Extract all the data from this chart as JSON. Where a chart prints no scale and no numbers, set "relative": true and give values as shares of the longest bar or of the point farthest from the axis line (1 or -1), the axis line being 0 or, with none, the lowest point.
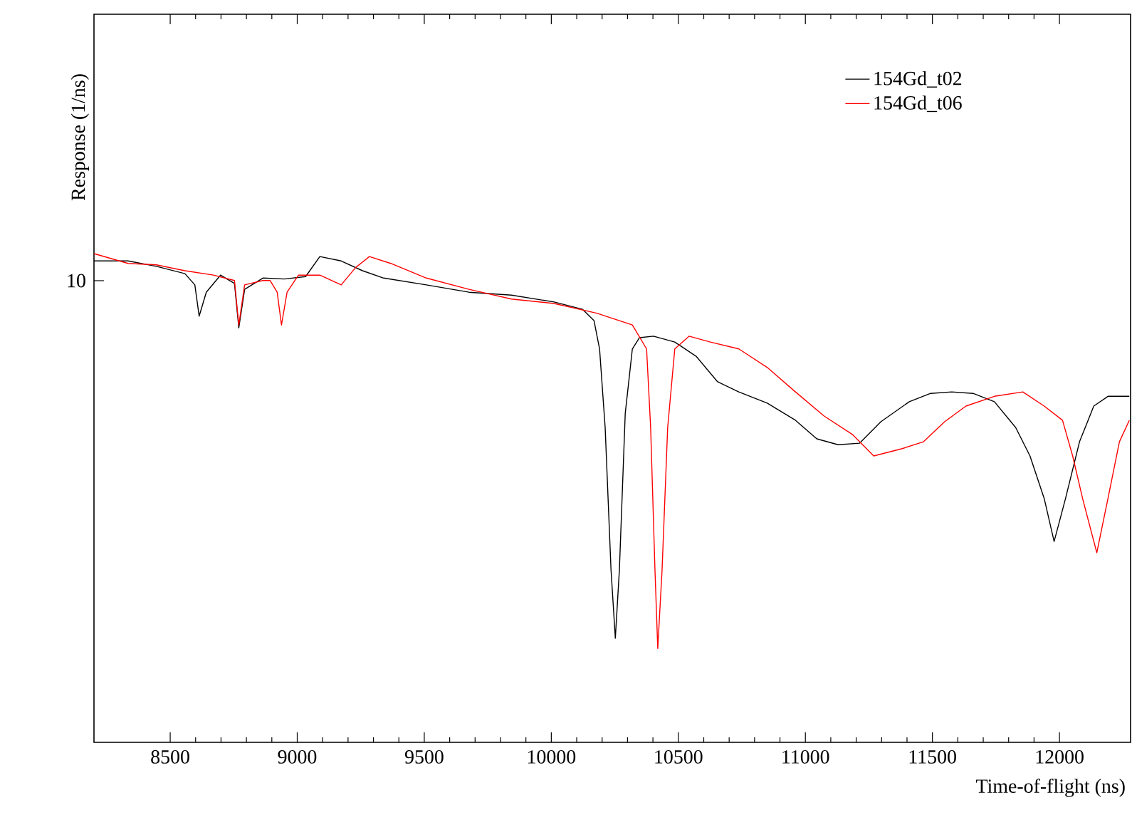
{
  "chart_data": {
    "type": "line",
    "xlabel": "Time-of-flight (ns)",
    "ylabel": "Response (1/ns)",
    "relative": true,
    "legend": "top right",
    "marker": "none",
    "line_style": "solid",
    "xlim": [
      8200,
      12280
    ],
    "xticks": [
      8500,
      9000,
      9500,
      10000,
      10500,
      11000,
      11500,
      12000
    ],
    "annotations": [
      "10"
    ],
    "series": [
      {
        "name": "154Gd_t02",
        "color": "#000000",
        "x": [
          8200,
          8334,
          8446,
          8558,
          8597,
          8614,
          8642,
          8698,
          8753,
          8770,
          8793,
          8865,
          8949,
          9033,
          9089,
          9173,
          9257,
          9340,
          9508,
          9676,
          9843,
          10011,
          10123,
          10168,
          10190,
          10212,
          10235,
          10252,
          10268,
          10291,
          10319,
          10347,
          10402,
          10486,
          10570,
          10654,
          10738,
          10850,
          10961,
          11045,
          11129,
          11213,
          11297,
          11409,
          11493,
          11576,
          11660,
          11744,
          11828,
          11884,
          11940,
          11979,
          12024,
          12079,
          12135,
          12191,
          12275
        ],
        "values": [
          0.985,
          0.985,
          0.974,
          0.959,
          0.936,
          0.872,
          0.921,
          0.956,
          0.939,
          0.848,
          0.927,
          0.95,
          0.948,
          0.953,
          0.994,
          0.985,
          0.965,
          0.95,
          0.936,
          0.921,
          0.915,
          0.901,
          0.886,
          0.863,
          0.805,
          0.644,
          0.353,
          0.213,
          0.353,
          0.673,
          0.805,
          0.828,
          0.831,
          0.819,
          0.79,
          0.738,
          0.717,
          0.694,
          0.659,
          0.621,
          0.609,
          0.612,
          0.656,
          0.697,
          0.714,
          0.717,
          0.714,
          0.697,
          0.644,
          0.586,
          0.499,
          0.411,
          0.499,
          0.615,
          0.688,
          0.708,
          0.708
        ]
      },
      {
        "name": "154Gd_t06",
        "color": "#ff0000",
        "x": [
          8200,
          8334,
          8446,
          8558,
          8670,
          8753,
          8770,
          8793,
          8865,
          8893,
          8921,
          8938,
          8960,
          9005,
          9089,
          9173,
          9229,
          9284,
          9368,
          9508,
          9676,
          9843,
          10011,
          10179,
          10319,
          10375,
          10391,
          10408,
          10419,
          10436,
          10458,
          10486,
          10542,
          10626,
          10738,
          10850,
          10961,
          11073,
          11185,
          11269,
          11381,
          11465,
          11548,
          11632,
          11744,
          11856,
          11940,
          12012,
          12052,
          12091,
          12147,
          12191,
          12236,
          12275
        ],
        "values": [
          1,
          0.98,
          0.977,
          0.965,
          0.956,
          0.945,
          0.854,
          0.936,
          0.945,
          0.945,
          0.921,
          0.854,
          0.921,
          0.956,
          0.956,
          0.936,
          0.971,
          0.994,
          0.98,
          0.95,
          0.927,
          0.907,
          0.898,
          0.878,
          0.854,
          0.805,
          0.644,
          0.353,
          0.192,
          0.353,
          0.644,
          0.805,
          0.831,
          0.819,
          0.805,
          0.767,
          0.717,
          0.668,
          0.63,
          0.586,
          0.601,
          0.615,
          0.656,
          0.688,
          0.708,
          0.717,
          0.688,
          0.659,
          0.586,
          0.499,
          0.388,
          0.499,
          0.615,
          0.659
        ]
      }
    ]
  }
}
